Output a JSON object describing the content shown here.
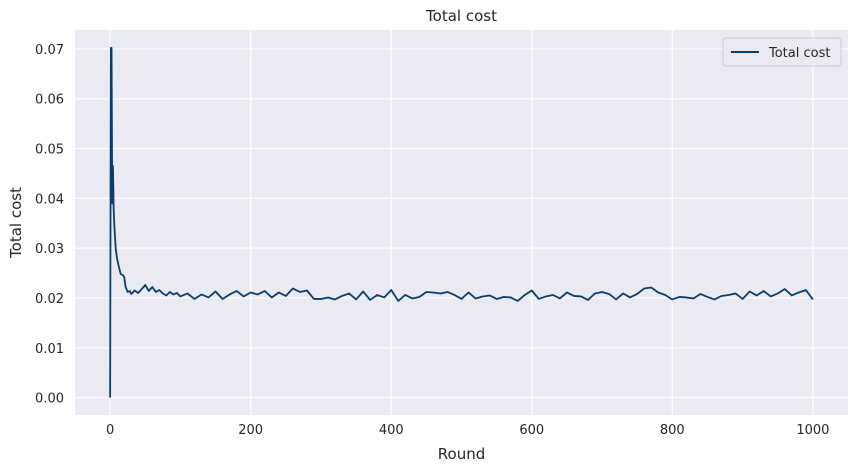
{
  "chart_data": {
    "type": "line",
    "title": "Total cost",
    "xlabel": "Round",
    "ylabel": "Total cost",
    "xlim": [
      -50,
      1050
    ],
    "ylim": [
      -0.0035,
      0.0738
    ],
    "xticks": [
      0,
      200,
      400,
      600,
      800,
      1000
    ],
    "xtick_labels": [
      "0",
      "200",
      "400",
      "600",
      "800",
      "1000"
    ],
    "yticks": [
      0.0,
      0.01,
      0.02,
      0.03,
      0.04,
      0.05,
      0.06,
      0.07
    ],
    "ytick_labels": [
      "0.00",
      "0.01",
      "0.02",
      "0.03",
      "0.04",
      "0.05",
      "0.06",
      "0.07"
    ],
    "grid": true,
    "legend_position": "top-right",
    "colors": {
      "background": "#eaeaf2",
      "grid": "#ffffff",
      "series": "#0b3d6b"
    },
    "series": [
      {
        "name": "Total cost",
        "x": [
          0,
          1,
          2,
          3,
          4,
          5,
          6,
          8,
          10,
          12,
          15,
          18,
          20,
          22,
          25,
          28,
          30,
          35,
          40,
          45,
          50,
          55,
          60,
          65,
          70,
          75,
          80,
          85,
          90,
          95,
          100,
          110,
          120,
          130,
          140,
          150,
          160,
          170,
          180,
          190,
          200,
          210,
          220,
          230,
          240,
          250,
          260,
          270,
          280,
          290,
          300,
          310,
          320,
          330,
          340,
          350,
          360,
          370,
          380,
          390,
          400,
          410,
          420,
          430,
          440,
          450,
          460,
          470,
          480,
          490,
          500,
          510,
          520,
          530,
          540,
          550,
          560,
          570,
          580,
          590,
          600,
          610,
          620,
          630,
          640,
          650,
          660,
          670,
          680,
          690,
          700,
          710,
          720,
          730,
          740,
          750,
          760,
          770,
          780,
          790,
          800,
          810,
          820,
          830,
          840,
          850,
          860,
          870,
          880,
          890,
          900,
          910,
          920,
          930,
          940,
          950,
          960,
          970,
          980,
          990,
          1000
        ],
        "y": [
          0.0,
          0.0702,
          0.0702,
          0.039,
          0.0465,
          0.038,
          0.0345,
          0.0298,
          0.0278,
          0.0265,
          0.0248,
          0.0246,
          0.0242,
          0.0222,
          0.0212,
          0.0214,
          0.0208,
          0.0215,
          0.021,
          0.0218,
          0.0226,
          0.0214,
          0.0222,
          0.0212,
          0.0216,
          0.0209,
          0.0205,
          0.0212,
          0.0207,
          0.021,
          0.0203,
          0.0209,
          0.0198,
          0.0207,
          0.0201,
          0.0213,
          0.0198,
          0.0207,
          0.0214,
          0.0203,
          0.0211,
          0.0207,
          0.0214,
          0.0201,
          0.0211,
          0.0204,
          0.0219,
          0.0212,
          0.0215,
          0.0198,
          0.0198,
          0.0201,
          0.0197,
          0.0204,
          0.0209,
          0.0197,
          0.0213,
          0.0196,
          0.0206,
          0.0201,
          0.0216,
          0.0194,
          0.0206,
          0.0199,
          0.0202,
          0.0212,
          0.0211,
          0.0209,
          0.0212,
          0.0206,
          0.0198,
          0.0211,
          0.0199,
          0.0203,
          0.0205,
          0.0198,
          0.0202,
          0.0201,
          0.0194,
          0.0206,
          0.0215,
          0.0198,
          0.0203,
          0.0206,
          0.0199,
          0.0211,
          0.0204,
          0.0203,
          0.0196,
          0.0209,
          0.0212,
          0.0208,
          0.0197,
          0.0209,
          0.0201,
          0.0208,
          0.0219,
          0.0221,
          0.0211,
          0.0206,
          0.0197,
          0.0202,
          0.0201,
          0.0199,
          0.0208,
          0.0202,
          0.0197,
          0.0204,
          0.0206,
          0.0209,
          0.0198,
          0.0213,
          0.0205,
          0.0214,
          0.0203,
          0.0209,
          0.0218,
          0.0205,
          0.0211,
          0.0216,
          0.0197
        ]
      }
    ]
  }
}
